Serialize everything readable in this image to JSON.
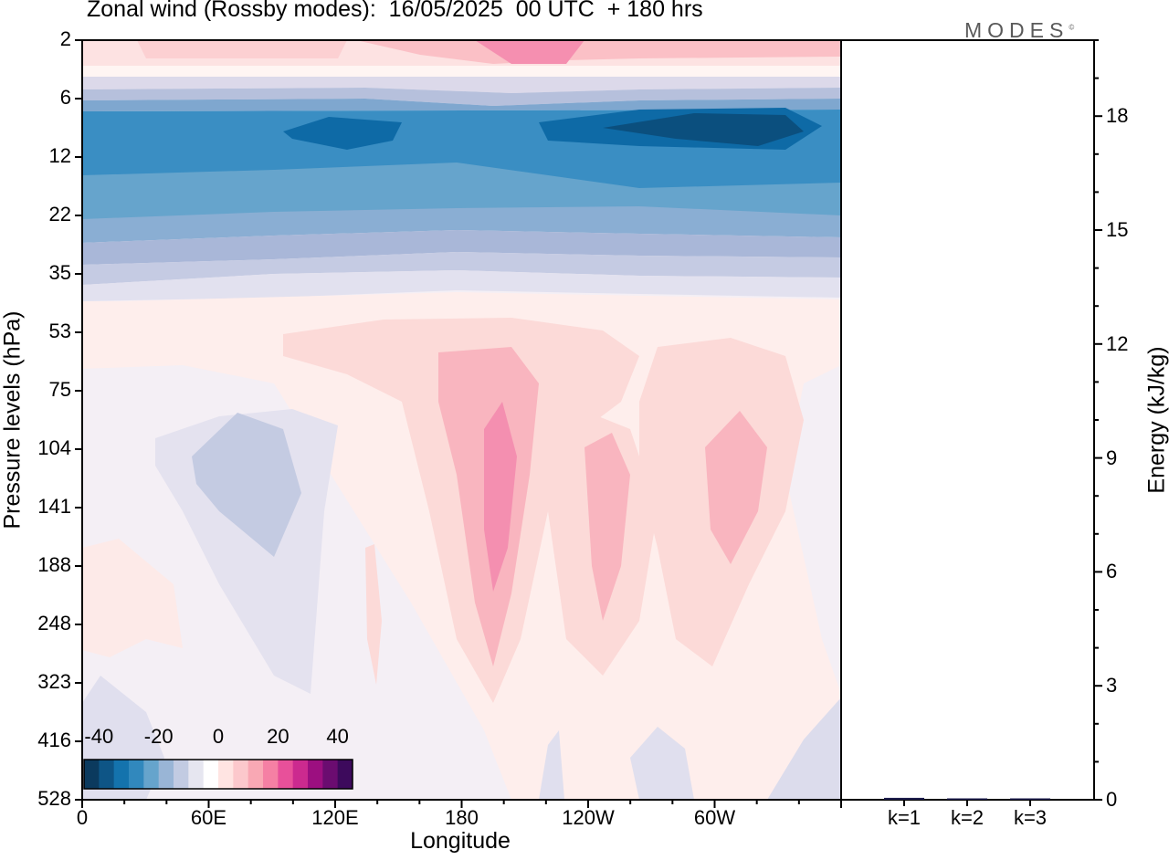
{
  "title": "Zonal wind (Rossby modes):  16/05/2025  00 UTC  + 180 hrs",
  "brand": "MODES",
  "brand_mark": "©",
  "chart_data": [
    {
      "type": "heatmap",
      "title": "Zonal wind (Rossby modes):  16/05/2025  00 UTC  + 180 hrs",
      "xlabel": "Longitude",
      "ylabel": "Pressure levels (hPa)",
      "x_ticks": [
        "0",
        "60E",
        "120E",
        "180",
        "120W",
        "60W"
      ],
      "y_ticks": [
        "2",
        "6",
        "12",
        "22",
        "35",
        "53",
        "75",
        "104",
        "141",
        "188",
        "248",
        "323",
        "416",
        "528"
      ],
      "y_scale": "log (pressure, increasing downward)",
      "colorbar": {
        "ticks": [
          "-40",
          "-20",
          "0",
          "20",
          "40"
        ],
        "colors": [
          "#0b3a5e",
          "#0e5586",
          "#1473ad",
          "#3188bd",
          "#66a4cc",
          "#99b5d6",
          "#c2cbe2",
          "#e6e6f0",
          "#ffffff",
          "#ffe4e2",
          "#fcc8cc",
          "#f9a8b4",
          "#f580a4",
          "#e8509a",
          "#cc2a8f",
          "#9c0f80",
          "#6b0c70",
          "#3d0a5c"
        ]
      },
      "approx_values_ms": [
        {
          "region": "2 hPa band",
          "value": 10
        },
        {
          "region": "6-12 hPa band",
          "value": -30
        },
        {
          "region": "22 hPa band",
          "value": -18
        },
        {
          "region": "35 hPa band",
          "value": -4
        },
        {
          "region": "180, 104-188 hPa core",
          "value": 15
        },
        {
          "region": "60E, 104-141 hPa",
          "value": -7
        }
      ]
    },
    {
      "type": "bar",
      "ylabel": "Energy (kJ/kg)",
      "categories": [
        "k=1",
        "k=2",
        "k=3"
      ],
      "values": [
        0.05,
        0.03,
        0.02
      ],
      "y_ticks": [
        "0",
        "3",
        "6",
        "9",
        "12",
        "15",
        "18"
      ],
      "ylim": [
        0,
        20
      ]
    }
  ]
}
